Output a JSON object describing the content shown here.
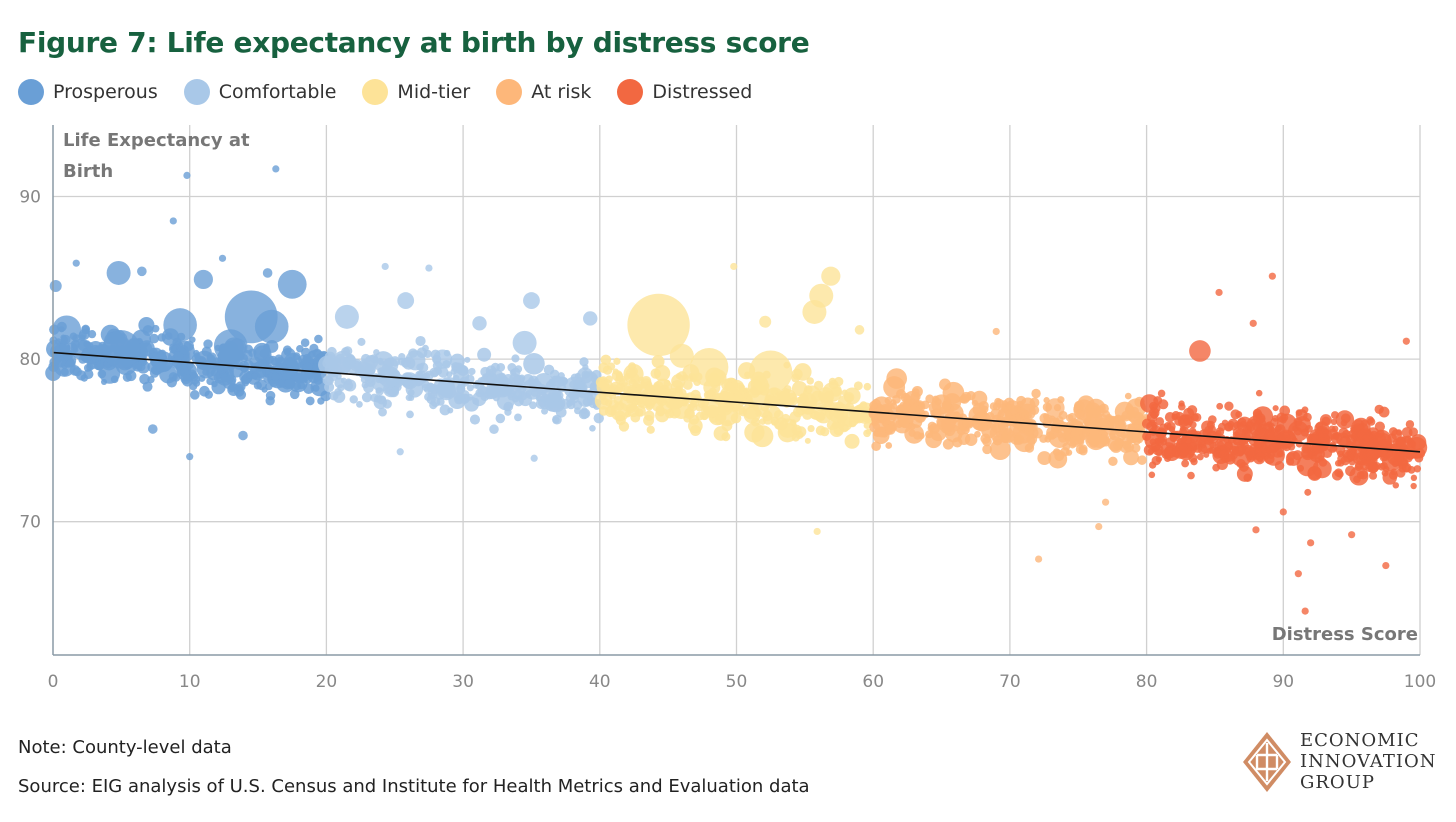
{
  "chart_data": {
    "type": "scatter",
    "title": "Figure 7: Life expectancy at birth by distress score",
    "xlabel": "Distress Score",
    "ylabel": "Life Expectancy at Birth",
    "xlim": [
      0,
      100
    ],
    "ylim": [
      61.8,
      94.4
    ],
    "xticks": [
      0,
      10,
      20,
      30,
      40,
      50,
      60,
      70,
      80,
      90,
      100
    ],
    "yticks": [
      70,
      80,
      90
    ],
    "grid": true,
    "legend_position": "top-left",
    "trendline": {
      "x": [
        0,
        100
      ],
      "y": [
        80.4,
        74.3
      ],
      "color": "#111111"
    },
    "series": [
      {
        "name": "Prosperous",
        "color": "#6a9fd6",
        "range": [
          0,
          20
        ],
        "generated": {
          "count": 420,
          "sd": 1.6
        },
        "points": [
          [
            14.5,
            82.6,
            22
          ],
          [
            17.5,
            84.6,
            12
          ],
          [
            4.8,
            85.3,
            10
          ],
          [
            11,
            84.9,
            8
          ],
          [
            9.3,
            82.1,
            14
          ],
          [
            1,
            81.8,
            12
          ],
          [
            5,
            80.6,
            16
          ],
          [
            13,
            80.8,
            14
          ],
          [
            16,
            82,
            14
          ],
          [
            9.8,
            91.3,
            3
          ],
          [
            16.3,
            91.7,
            3
          ],
          [
            8.8,
            88.5,
            3
          ],
          [
            10,
            74,
            3
          ],
          [
            7.3,
            75.7,
            4
          ],
          [
            13.9,
            75.3,
            4
          ],
          [
            1.7,
            85.9,
            3
          ],
          [
            12.4,
            86.2,
            3
          ],
          [
            0.2,
            84.5,
            5
          ],
          [
            6.5,
            85.4,
            4
          ],
          [
            15.7,
            85.3,
            4
          ]
        ]
      },
      {
        "name": "Comfortable",
        "color": "#a9c8e8",
        "range": [
          20,
          40
        ],
        "generated": {
          "count": 380,
          "sd": 1.7
        },
        "points": [
          [
            21.5,
            82.6,
            10
          ],
          [
            25.8,
            83.6,
            7
          ],
          [
            34.5,
            81,
            10
          ],
          [
            35,
            83.6,
            7
          ],
          [
            39.3,
            82.5,
            6
          ],
          [
            31.2,
            82.2,
            6
          ],
          [
            24.3,
            85.7,
            3
          ],
          [
            27.5,
            85.6,
            3
          ],
          [
            25.4,
            74.3,
            3
          ],
          [
            35.2,
            73.9,
            3
          ],
          [
            28.5,
            80,
            8
          ]
        ]
      },
      {
        "name": "Mid-tier",
        "color": "#fde398",
        "range": [
          40,
          60
        ],
        "generated": {
          "count": 380,
          "sd": 1.8
        },
        "points": [
          [
            44.3,
            82.1,
            26
          ],
          [
            48,
            79.5,
            16
          ],
          [
            52.5,
            79.2,
            18
          ],
          [
            55.7,
            82.9,
            10
          ],
          [
            56.2,
            83.9,
            10
          ],
          [
            56.9,
            85.1,
            8
          ],
          [
            49.8,
            85.7,
            3
          ],
          [
            55.9,
            69.4,
            3
          ],
          [
            52.1,
            82.3,
            5
          ],
          [
            59,
            81.8,
            4
          ],
          [
            46,
            80.2,
            10
          ]
        ]
      },
      {
        "name": "At risk",
        "color": "#fdb77a",
        "range": [
          60,
          80
        ],
        "generated": {
          "count": 420,
          "sd": 1.6
        },
        "points": [
          [
            72.1,
            67.7,
            3
          ],
          [
            76.5,
            69.7,
            3
          ],
          [
            73.3,
            77,
            8
          ],
          [
            65.5,
            76,
            6
          ],
          [
            69,
            81.7,
            3
          ],
          [
            77,
            71.2,
            3
          ]
        ]
      },
      {
        "name": "Distressed",
        "color": "#f26841",
        "range": [
          80,
          100
        ],
        "generated": {
          "count": 520,
          "sd": 1.9
        },
        "points": [
          [
            83.9,
            80.5,
            9
          ],
          [
            89.2,
            85.1,
            3
          ],
          [
            85.3,
            84.1,
            3
          ],
          [
            87.8,
            82.2,
            3
          ],
          [
            91.6,
            64.5,
            3
          ],
          [
            91.1,
            66.8,
            3
          ],
          [
            92,
            68.7,
            3
          ],
          [
            97.5,
            67.3,
            3
          ],
          [
            99,
            81.1,
            3
          ],
          [
            88,
            69.5,
            3
          ],
          [
            95,
            69.2,
            3
          ],
          [
            90,
            70.6,
            3
          ]
        ]
      }
    ]
  },
  "notes": {
    "note": "Note: County-level data",
    "source": "Source: EIG analysis of U.S. Census and Institute for Health Metrics and Evaluation data"
  },
  "logo": {
    "line1": "ECONOMIC",
    "line2": "INNOVATION",
    "line3": "GROUP",
    "color": "#d08c64"
  }
}
